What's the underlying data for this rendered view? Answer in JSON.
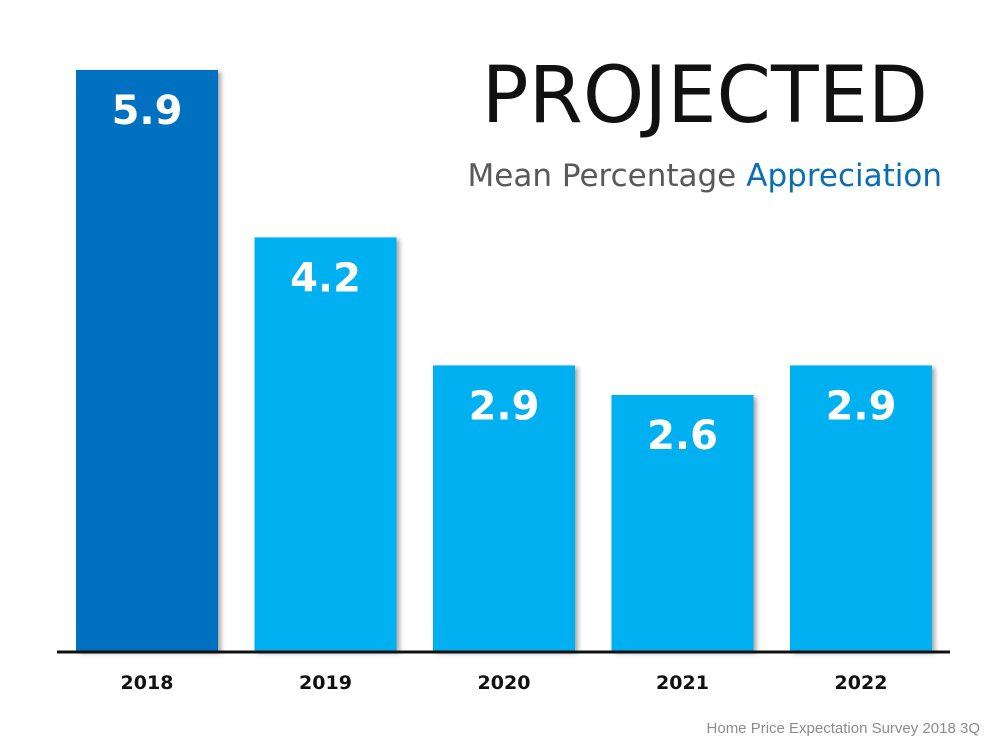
{
  "chart_data": {
    "type": "bar",
    "title": "PROJECTED",
    "subtitle_part1": "Mean Percentage",
    "subtitle_part2": "Appreciation",
    "categories": [
      "2018",
      "2019",
      "2020",
      "2021",
      "2022"
    ],
    "values": [
      5.9,
      4.2,
      2.9,
      2.6,
      2.9
    ],
    "value_labels": [
      "5.9",
      "4.2",
      "2.9",
      "2.6",
      "2.9"
    ],
    "ylim": [
      0,
      5.9
    ],
    "grid": false,
    "source": "Home Price Expectation Survey 2018 3Q",
    "colors": {
      "highlight_bar": "#0070c0",
      "bar": "#00b0f0",
      "subtitle_gray": "#595959",
      "subtitle_blue": "#0a6eb4",
      "axis": "#111111"
    },
    "highlight_index": 0
  }
}
